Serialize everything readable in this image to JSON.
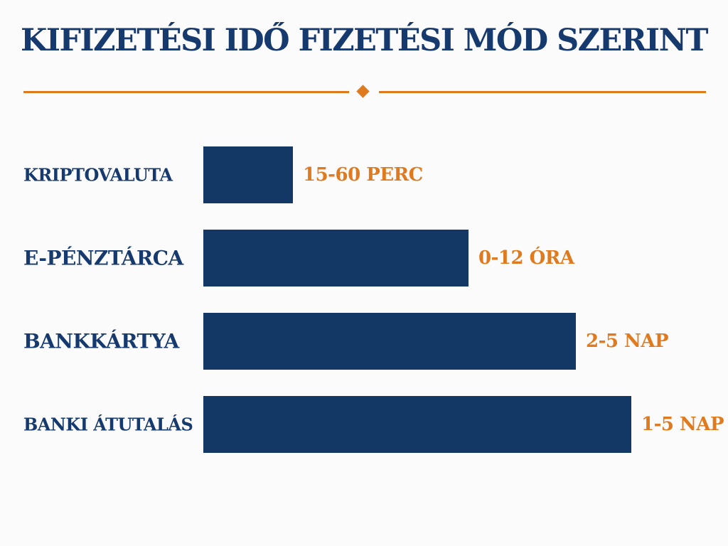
{
  "title": "KIFIZETÉSI IDŐ FIZETÉSI MÓD SZERINT",
  "colors": {
    "bar": "#143866",
    "title": "#173a6e",
    "accent": "#e07a1f"
  },
  "chart_data": {
    "type": "bar",
    "orientation": "horizontal",
    "categories": [
      "KRIPTOVALUTA",
      "E-PÉNZTÁRCA",
      "BANKKÁRTYA",
      "BANKI ÁTUTALÁS"
    ],
    "value_labels": [
      "15-60 PERC",
      "0-12 ÓRA",
      "2-5 NAP",
      "1-5 NAP"
    ],
    "values": [
      0.21,
      0.62,
      0.87,
      1.0
    ],
    "grid": false,
    "legend": "none"
  }
}
